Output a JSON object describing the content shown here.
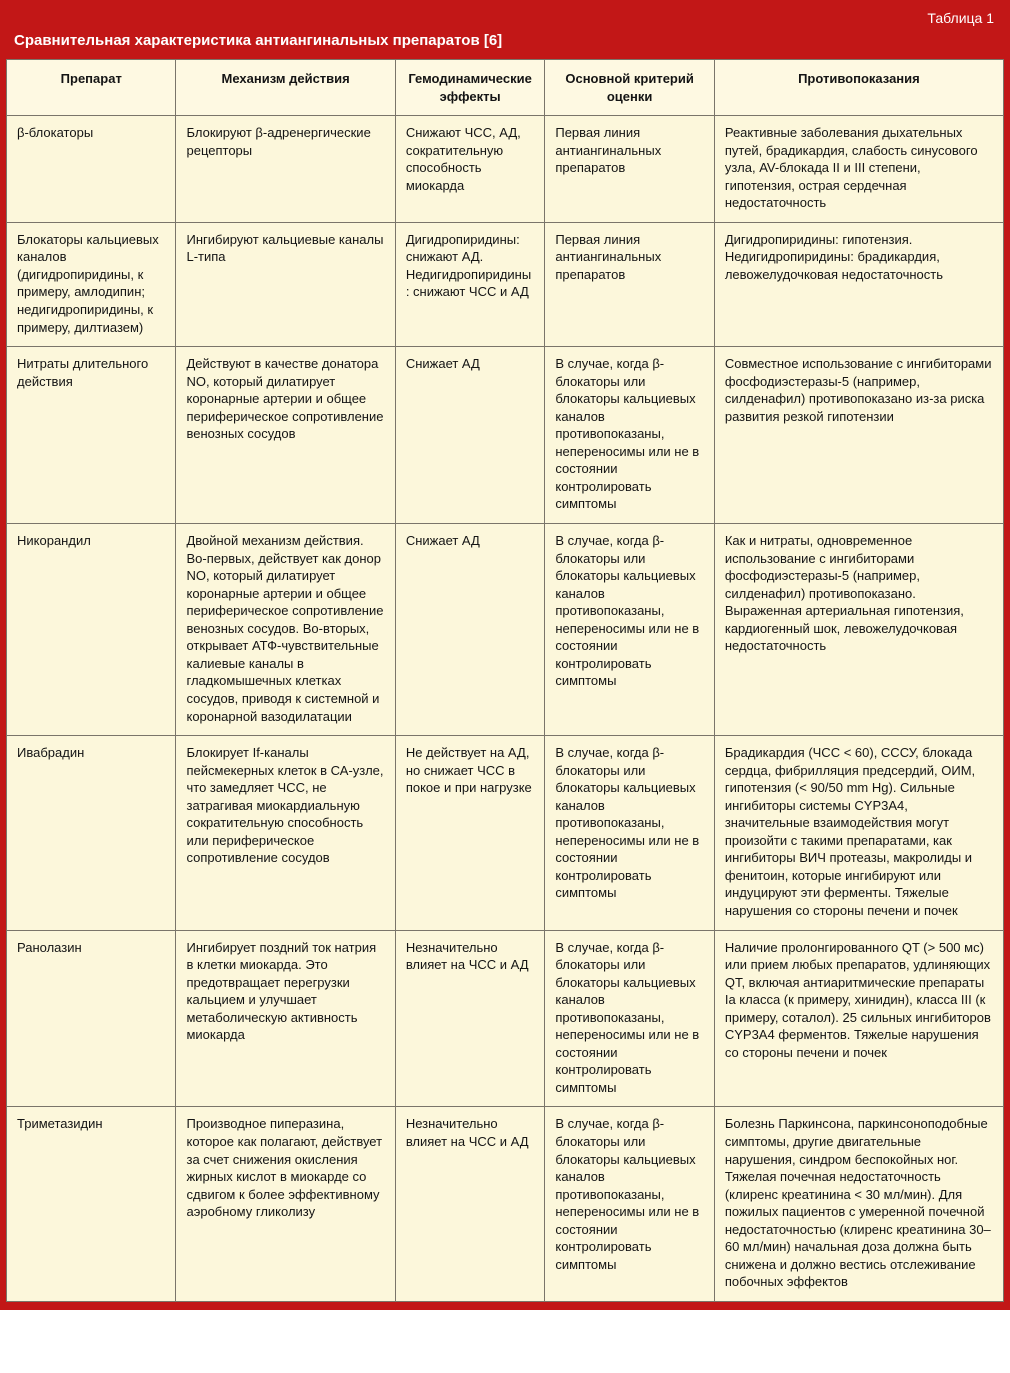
{
  "table_label": "Таблица 1",
  "title": "Сравнительная характеристика антиангинальных препаратов [6]",
  "colors": {
    "outer_bg": "#c21717",
    "header_text": "#ffffff",
    "cell_bg": "#fcf7db",
    "th_bg": "#fef9e2",
    "border": "#7a756a",
    "text": "#141414"
  },
  "column_widths_pct": [
    17,
    22,
    15,
    17,
    29
  ],
  "columns": [
    "Препарат",
    "Механизм действия",
    "Гемодинамические эффекты",
    "Основной критерий оценки",
    "Противопоказания"
  ],
  "rows": [
    {
      "c0": "β-блокаторы",
      "c1": "Блокируют β-адренергические рецепторы",
      "c2": "Снижают ЧСС, АД, сократительную способность миокарда",
      "c3": "Первая линия антиангинальных препаратов",
      "c4": "Реактивные заболевания дыхательных путей, брадикардия, слабость синусового узла, AV-блокада II и III степени, гипотензия, острая сердечная недостаточность"
    },
    {
      "c0": "Блокаторы кальциевых каналов (дигидропиридины, к примеру, амлодипин; недигидропиридины, к примеру, дилтиазем)",
      "c1": "Ингибируют кальциевые каналы L-типа",
      "c2": "Дигидропиридины: снижают АД. Недигидропиридины: снижают ЧСС и АД",
      "c3": "Первая линия антиангинальных препаратов",
      "c4": "Дигидропиридины: гипотензия. Недигидропиридины: брадикардия, левожелудочковая недостаточность"
    },
    {
      "c0": "Нитраты длительного действия",
      "c1": "Действуют в качестве донатора NO, который дилатирует коронарные артерии и общее периферическое сопротивление венозных сосудов",
      "c2": "Снижает АД",
      "c3": "В случае, когда β-блокаторы или блокаторы кальциевых каналов противопоказаны, непереносимы или не в состоянии контролировать симптомы",
      "c4": "Совместное использование с ингибиторами фосфодиэстеразы-5 (например, силденафил) противопоказано из-за риска развития резкой гипотензии"
    },
    {
      "c0": "Никорандил",
      "c1": "Двойной механизм действия. Во-первых, действует как донор NO, который дилатирует коронарные артерии и общее периферическое сопротивление венозных сосудов. Во-вторых, открывает АТФ-чувствительные калиевые каналы в гладкомышечных клетках сосудов, приводя к системной и коронарной вазодилатации",
      "c2": "Снижает АД",
      "c3": "В случае, когда β-блокаторы или блокаторы кальциевых каналов противопоказаны, непереносимы или не в состоянии контролировать симптомы",
      "c4": "Как и нитраты, одновременное использование с ингибиторами фосфодиэстеразы-5 (например, силденафил) противопоказано. Выраженная артериальная гипотензия, кардиогенный шок, левожелудочковая недостаточность"
    },
    {
      "c0": "Ивабрадин",
      "c1": "Блокирует If-каналы пейсмекерных клеток в СА-узле, что замедляет ЧСС, не затрагивая миокардиальную сократительную способность или периферическое сопротивление сосудов",
      "c2": "Не действует на АД, но снижает ЧСС в покое и при нагрузке",
      "c3": "В случае, когда β-блокаторы или блокаторы кальциевых каналов противопоказаны, непереносимы или не в состоянии контролировать симптомы",
      "c4": "Брадикардия (ЧСС < 60), СССУ, блокада сердца, фибрилляция предсердий, ОИМ, гипотензия (< 90/50 mm Hg). Сильные ингибиторы системы CYP3A4, значительные взаимодействия могут произойти с такими препаратами, как ингибиторы ВИЧ протеазы, макролиды и фенитоин, которые ингибируют или индуцируют эти ферменты. Тяжелые нарушения со стороны печени и почек"
    },
    {
      "c0": "Ранолазин",
      "c1": "Ингибирует поздний ток натрия в клетки миокарда. Это предотвращает перегрузки кальцием и улучшает метаболическую активность миокарда",
      "c2": "Незначительно влияет на ЧСС и АД",
      "c3": "В случае, когда β-блокаторы или блокаторы кальциевых каналов противопоказаны, непереносимы или не в состоянии контролировать симптомы",
      "c4": "Наличие пролонгированного QT (> 500 мс) или прием любых препаратов, удлиняющих QT, включая антиаритмические препараты Ia класса (к примеру, хинидин), класса III (к примеру, соталол). 25 сильных ингибиторов CYP3A4 ферментов. Тяжелые нарушения со стороны печени и почек"
    },
    {
      "c0": "Триметазидин",
      "c1": "Производное пиперазина, которое как полагают, действует за счет снижения окисления жирных кислот в миокарде со сдвигом к более эффективному аэробному гликолизу",
      "c2": "Незначительно влияет на ЧСС и АД",
      "c3": "В случае, когда β-блокаторы или блокаторы кальциевых каналов противопоказаны, непереносимы или не в состоянии контролировать симптомы",
      "c4": "Болезнь Паркинсона, паркинсоноподобные симптомы, другие двигательные нарушения, синдром беспокойных ног. Тяжелая почечная недостаточность (клиренс креатинина < 30 мл/мин). Для пожилых пациентов с умеренной почечной недостаточностью (клиренс креатинина 30–60 мл/мин) начальная доза должна быть снижена и должно вестись отслеживание побочных эффектов"
    }
  ]
}
